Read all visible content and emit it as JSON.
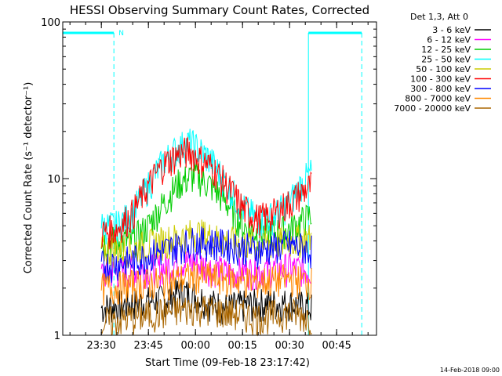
{
  "chart_data": {
    "type": "line",
    "title": "HESSI Observing Summary Count Rates, Corrected",
    "xlabel": "Start Time (09-Feb-18 23:17:42)",
    "ylabel": "Corrected Count Rate (s⁻¹ detector⁻¹)",
    "yscale": "log",
    "ylim": [
      1,
      100
    ],
    "xlim": [
      "23:17:42",
      "00:57:42"
    ],
    "x_ticks": [
      "23:30",
      "23:45",
      "00:00",
      "00:15",
      "00:30",
      "00:45"
    ],
    "y_ticks": [
      "1",
      "10",
      "100"
    ],
    "legend_title": "Det 1,3, Att 0",
    "legend_position": "right",
    "footer": "14-Feb-2018 09:00",
    "annotations": [
      {
        "text": "N"
      }
    ],
    "series": [
      {
        "name": "3 - 6 keV",
        "color": "#000000",
        "x": [
          "23:30",
          "23:40",
          "23:50",
          "23:55",
          "00:00",
          "00:05",
          "00:10",
          "00:20",
          "00:30",
          "00:37"
        ],
        "values": [
          1.5,
          1.6,
          1.7,
          1.9,
          1.8,
          1.6,
          1.5,
          1.6,
          1.6,
          1.5
        ]
      },
      {
        "name": "6 - 12 keV",
        "color": "#ff00ff",
        "x": [
          "23:30",
          "23:40",
          "23:50",
          "23:55",
          "00:00",
          "00:05",
          "00:10",
          "00:20",
          "00:30",
          "00:37"
        ],
        "values": [
          2.5,
          2.6,
          2.7,
          3.0,
          2.9,
          2.7,
          2.5,
          2.6,
          2.7,
          2.6
        ]
      },
      {
        "name": "12 - 25 keV",
        "color": "#00cc00",
        "x": [
          "23:30",
          "23:40",
          "23:45",
          "23:50",
          "23:55",
          "00:00",
          "00:05",
          "00:10",
          "00:15",
          "00:20",
          "00:25",
          "00:30",
          "00:35",
          "00:37"
        ],
        "values": [
          4,
          4,
          5,
          7,
          9.5,
          10.5,
          9,
          7,
          5,
          4.5,
          4.5,
          4.8,
          5.5,
          6
        ]
      },
      {
        "name": "25 - 50 keV",
        "color": "#00ffff",
        "x": [
          "23:30",
          "23:35",
          "23:40",
          "23:45",
          "23:50",
          "23:55",
          "23:58",
          "00:00",
          "00:05",
          "00:10",
          "00:15",
          "00:20",
          "00:25",
          "00:30",
          "00:35",
          "00:37"
        ],
        "values": [
          5,
          5,
          6,
          9,
          13,
          16,
          17,
          16,
          13,
          9,
          6.5,
          5.5,
          5.8,
          7,
          10,
          11
        ]
      },
      {
        "name": "50 - 100 keV",
        "color": "#cccc00",
        "x": [
          "23:30",
          "23:40",
          "23:50",
          "00:00",
          "00:10",
          "00:20",
          "00:30",
          "00:37"
        ],
        "values": [
          3.5,
          3.6,
          4,
          4.5,
          4,
          3.8,
          4,
          4.2
        ]
      },
      {
        "name": "100 - 300 keV",
        "color": "#ff0000",
        "x": [
          "23:30",
          "23:35",
          "23:40",
          "23:45",
          "23:50",
          "23:55",
          "23:58",
          "00:00",
          "00:05",
          "00:10",
          "00:15",
          "00:20",
          "00:25",
          "00:30",
          "00:35",
          "00:37"
        ],
        "values": [
          4.5,
          4.8,
          6,
          9,
          12.5,
          14.5,
          15,
          14,
          12,
          9,
          6.5,
          5.5,
          6,
          7,
          8.5,
          9
        ]
      },
      {
        "name": "300 - 800 keV",
        "color": "#0000ff",
        "x": [
          "23:30",
          "23:40",
          "23:50",
          "00:00",
          "00:10",
          "00:20",
          "00:30",
          "00:37"
        ],
        "values": [
          2.8,
          3,
          3.5,
          4,
          3.8,
          3.5,
          3.8,
          3.5
        ]
      },
      {
        "name": "800 - 7000 keV",
        "color": "#ff8800",
        "x": [
          "23:30",
          "23:40",
          "23:50",
          "00:00",
          "00:10",
          "00:20",
          "00:30",
          "00:37"
        ],
        "values": [
          2,
          2.1,
          2.2,
          2.4,
          2.3,
          2.2,
          2.3,
          2.2
        ]
      },
      {
        "name": "7000 - 20000 keV",
        "color": "#aa6600",
        "x": [
          "23:30",
          "23:40",
          "23:50",
          "00:00",
          "00:10",
          "00:20",
          "00:30",
          "00:37"
        ],
        "values": [
          1.2,
          1.3,
          1.4,
          1.5,
          1.4,
          1.3,
          1.4,
          1.3
        ]
      }
    ],
    "intervals": [
      {
        "label": "N",
        "start": "23:17:42",
        "end": "23:34:00",
        "color": "#00ffff"
      },
      {
        "label": "",
        "start": "00:36:00",
        "end": "00:53:00",
        "color": "#00ffff"
      }
    ]
  }
}
